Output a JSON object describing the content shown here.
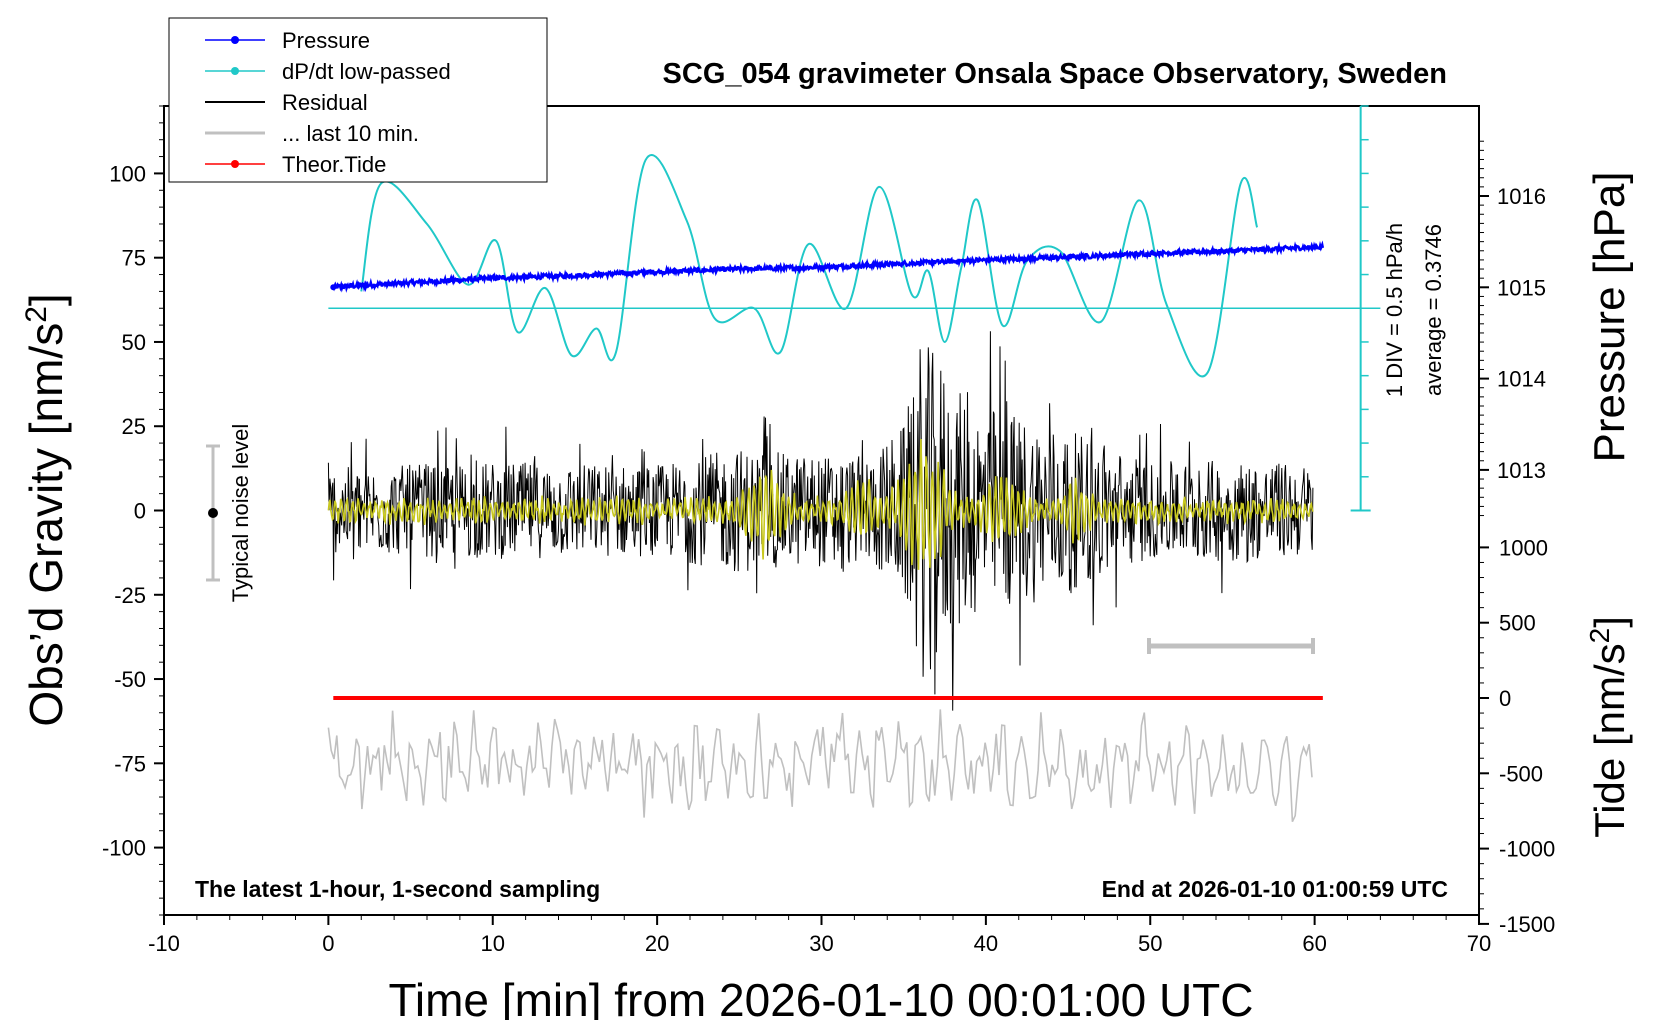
{
  "chart_data": {
    "type": "line",
    "title": "SCG_054 gravimeter Onsala Space Observatory, Sweden",
    "xlabel": "Time [min] from 2026-01-10 00:01:00 UTC",
    "xlim": [
      -10,
      70
    ],
    "x_ticks": [
      "-10",
      "0",
      "10",
      "20",
      "30",
      "40",
      "50",
      "60",
      "70"
    ],
    "left_axis": {
      "label_main": "Obs’d Gravity [nm/s",
      "label_sup": "2",
      "label_end": "]",
      "ylim": [
        -120,
        120
      ],
      "ticks": [
        "100",
        "75",
        "50",
        "25",
        "0",
        "-25",
        "-50",
        "-75",
        "-100"
      ]
    },
    "pressure_axis": {
      "label": "Pressure [hPa]",
      "ticks": [
        "1016",
        "1015",
        "1014",
        "1013"
      ]
    },
    "tide_axis": {
      "label_main": "Tide [nm/s",
      "label_sup": "2",
      "label_end": "]",
      "ticks": [
        "1000",
        "500",
        "0",
        "-500",
        "-1000",
        "-1500"
      ]
    },
    "dpdt_scale": {
      "line1": "1 DIV = 0.5 hPa/h",
      "line2": "average = 0.3746"
    },
    "noise_label": "Typical noise level",
    "footer_left": "The latest 1-hour, 1-second sampling",
    "footer_right": "End at 2026-01-10 01:00:59 UTC",
    "legend": [
      {
        "label": "Pressure",
        "color": "#0000ff"
      },
      {
        "label": "dP/dt low-passed",
        "color": "#20c8c8"
      },
      {
        "label": "Residual",
        "color": "#000000"
      },
      {
        "label": "... last 10 min.",
        "color": "#c0c0c0"
      },
      {
        "label": "Theor.Tide",
        "color": "#ff0000"
      }
    ],
    "series": [
      {
        "name": "Pressure",
        "axis": "pressure_hPa",
        "x": [
          0,
          5,
          10,
          15,
          20,
          25,
          30,
          35,
          40,
          45,
          50,
          55,
          60
        ],
        "values": [
          1015.0,
          1015.05,
          1015.1,
          1015.13,
          1015.17,
          1015.2,
          1015.22,
          1015.26,
          1015.3,
          1015.33,
          1015.37,
          1015.4,
          1015.44
        ]
      },
      {
        "name": "dP/dt low-passed",
        "axis": "gravity_plot_units",
        "x": [
          2,
          3.2,
          6,
          8.5,
          10.2,
          11.5,
          13.2,
          14.8,
          16.3,
          17.5,
          19.3,
          21.8,
          23.5,
          25.9,
          27.5,
          29.2,
          31.5,
          33.5,
          35.5,
          36.5,
          37.5,
          38.5,
          39.5,
          41,
          42.5,
          44.5,
          47,
          49.3,
          51,
          53.5,
          55.5,
          56.5
        ],
        "values": [
          65,
          97,
          85,
          67,
          80,
          53,
          66,
          46,
          54,
          47,
          104,
          86,
          57,
          60,
          47,
          79,
          60,
          96,
          64,
          71,
          50,
          72,
          92,
          55,
          74,
          77,
          56,
          92,
          61,
          41,
          97,
          84
        ]
      },
      {
        "name": "dP/dt average line",
        "axis": "gravity_plot_units",
        "x": [
          0,
          64
        ],
        "values": [
          60,
          60
        ]
      },
      {
        "name": "Residual envelope",
        "axis": "gravity_nm_s2",
        "x": [
          0,
          10,
          20,
          25,
          28,
          33,
          35,
          36,
          37,
          39,
          41,
          46,
          50,
          55,
          60
        ],
        "values": [
          15,
          17,
          16,
          22,
          20,
          19,
          30,
          54,
          50,
          38,
          36,
          26,
          17,
          18,
          16
        ]
      },
      {
        "name": "... last 10 min.",
        "axis": "gravity_plot_units",
        "x": [
          0,
          10,
          20,
          30,
          40,
          50,
          60
        ],
        "values": [
          -75,
          -73,
          -76,
          -74,
          -75,
          -76,
          -79
        ]
      },
      {
        "name": "Theor.Tide",
        "axis": "tide_nm_s2",
        "x": [
          0,
          20,
          40,
          60
        ],
        "values": [
          0,
          0,
          0,
          0
        ]
      }
    ]
  }
}
